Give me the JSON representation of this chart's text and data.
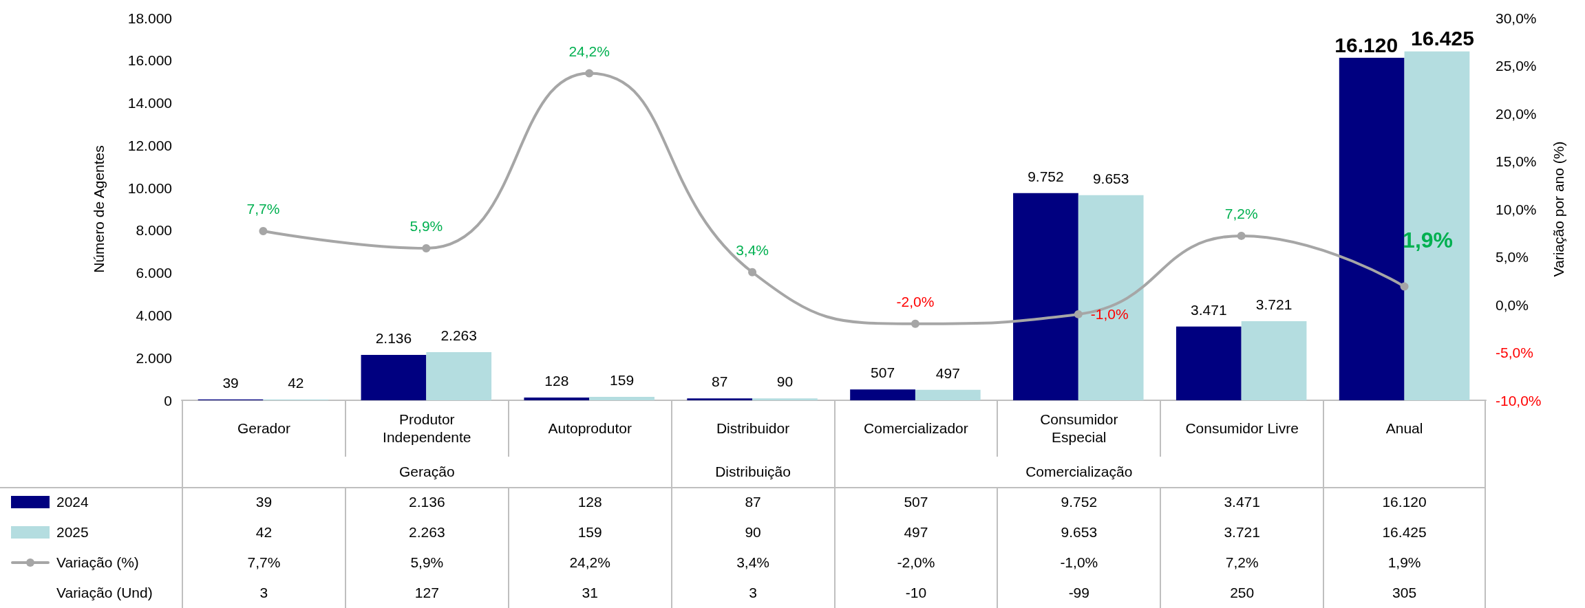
{
  "chart_data": {
    "type": "bar",
    "ylabel": "Número de Agentes",
    "y2label": "Variação por ano (%)",
    "categories": [
      "Gerador",
      "Produtor Independente",
      "Autoprodutor",
      "Distribuidor",
      "Comercializador",
      "Consumidor Especial",
      "Consumidor Livre",
      "Anual"
    ],
    "series": [
      {
        "name": "2024",
        "color": "#000080",
        "values": [
          39,
          2136,
          128,
          87,
          507,
          9752,
          3471,
          16120
        ],
        "value_labels": [
          "39",
          "2.136",
          "128",
          "87",
          "507",
          "9.752",
          "3.471",
          "16.120"
        ]
      },
      {
        "name": "2025",
        "color": "#b4dde0",
        "values": [
          42,
          2263,
          159,
          90,
          497,
          9653,
          3721,
          16425
        ],
        "value_labels": [
          "42",
          "2.263",
          "159",
          "90",
          "497",
          "9.653",
          "3.721",
          "16.425"
        ]
      },
      {
        "name": "Variação (%)",
        "type": "line",
        "axis": "y2",
        "color": "#a6a6a6",
        "marker": "circle",
        "line_style": "solid",
        "values": [
          7.7,
          5.9,
          24.2,
          3.4,
          -2.0,
          -1.0,
          7.2,
          1.9
        ],
        "value_labels": [
          "7,7%",
          "5,9%",
          "24,2%",
          "3,4%",
          "-2,0%",
          "-1,0%",
          "7,2%",
          "1,9%"
        ]
      }
    ],
    "ylim": [
      0,
      18000
    ],
    "yticks": [
      0,
      {
        "value": 2000,
        "label": "2.000"
      },
      {
        "value": 4000,
        "label": "4.000"
      },
      {
        "value": 6000,
        "label": "6.000"
      },
      {
        "value": 8000,
        "label": "8.000"
      },
      {
        "value": 10000,
        "label": "10.000"
      },
      {
        "value": 12000,
        "label": "12.000"
      },
      {
        "value": 14000,
        "label": "14.000"
      },
      {
        "value": 16000,
        "label": "16.000"
      },
      {
        "value": 18000,
        "label": "18.000"
      }
    ],
    "y2lim": [
      -10,
      30
    ],
    "y2ticks": [
      {
        "value": -10,
        "label": "-10,0%"
      },
      {
        "value": -5,
        "label": "-5,0%"
      },
      {
        "value": 0,
        "label": "0,0%"
      },
      {
        "value": 5,
        "label": "5,0%"
      },
      {
        "value": 10,
        "label": "10,0%"
      },
      {
        "value": 15,
        "label": "15,0%"
      },
      {
        "value": 20,
        "label": "20,0%"
      },
      {
        "value": 25,
        "label": "25,0%"
      },
      {
        "value": 30,
        "label": "30,0%"
      }
    ],
    "annotations": [
      "Geração",
      "Distribuição",
      "Comercialização",
      "Variação (Und)",
      "3",
      "127",
      "31",
      "3",
      "-10",
      "-99",
      "250",
      "305"
    ],
    "legend": "bottom",
    "grid": false
  }
}
